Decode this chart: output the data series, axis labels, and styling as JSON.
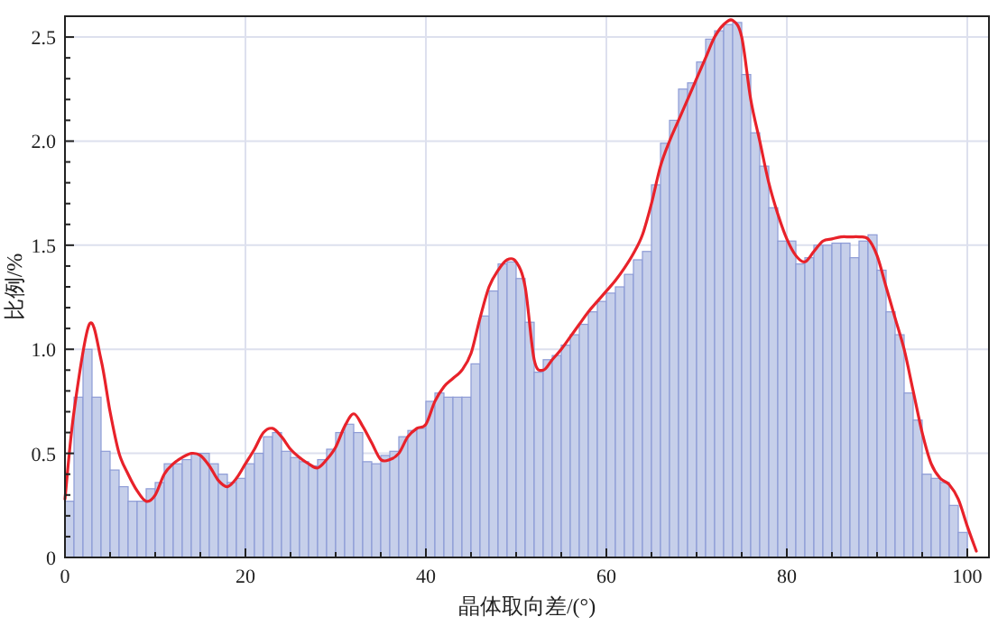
{
  "chart_data": {
    "type": "histogram",
    "xlabel": "晶体取向差/(°)",
    "ylabel": "比例/%",
    "bins": [
      0,
      1,
      2,
      3,
      4,
      5,
      6,
      7,
      8,
      9,
      10,
      11,
      12,
      13,
      14,
      15,
      16,
      17,
      18,
      19,
      20,
      21,
      22,
      23,
      24,
      25,
      26,
      27,
      28,
      29,
      30,
      31,
      32,
      33,
      34,
      35,
      36,
      37,
      38,
      39,
      40,
      41,
      42,
      43,
      44,
      45,
      46,
      47,
      48,
      49,
      50,
      51,
      52,
      53,
      54,
      55,
      56,
      57,
      58,
      59,
      60,
      61,
      62,
      63,
      64,
      65,
      66,
      67,
      68,
      69,
      70,
      71,
      72,
      73,
      74,
      75,
      76,
      77,
      78,
      79,
      80,
      81,
      82,
      83,
      84,
      85,
      86,
      87,
      88,
      89,
      90,
      91,
      92,
      93,
      94,
      95,
      96,
      97,
      98,
      99,
      100
    ],
    "values": [
      0.27,
      0.77,
      1.0,
      0.77,
      0.51,
      0.42,
      0.34,
      0.27,
      0.27,
      0.33,
      0.36,
      0.45,
      0.45,
      0.47,
      0.5,
      0.5,
      0.45,
      0.4,
      0.36,
      0.38,
      0.45,
      0.5,
      0.58,
      0.6,
      0.51,
      0.48,
      0.46,
      0.44,
      0.47,
      0.52,
      0.6,
      0.64,
      0.6,
      0.46,
      0.45,
      0.49,
      0.51,
      0.58,
      0.61,
      0.62,
      0.75,
      0.79,
      0.77,
      0.77,
      0.77,
      0.93,
      1.16,
      1.28,
      1.41,
      1.42,
      1.34,
      1.13,
      0.89,
      0.95,
      0.97,
      1.02,
      1.07,
      1.12,
      1.18,
      1.23,
      1.27,
      1.3,
      1.36,
      1.43,
      1.47,
      1.79,
      1.99,
      2.1,
      2.25,
      2.28,
      2.38,
      2.49,
      2.53,
      2.56,
      2.57,
      2.32,
      2.04,
      1.88,
      1.68,
      1.52,
      1.52,
      1.41,
      1.44,
      1.5,
      1.5,
      1.51,
      1.51,
      1.44,
      1.52,
      1.55,
      1.38,
      1.18,
      1.07,
      0.79,
      0.66,
      0.4,
      0.38,
      0.36,
      0.25,
      0.12
    ],
    "color": "#c6cfea",
    "series": [
      {
        "type": "line",
        "color": "#e8222a",
        "x": [
          0,
          1,
          2.7,
          4,
          5,
          6,
          7,
          8,
          9,
          10,
          11,
          12,
          13,
          14,
          15,
          16,
          17,
          18,
          19,
          20,
          21,
          22,
          23,
          24,
          25,
          26,
          27,
          28,
          29,
          30,
          31,
          32,
          33,
          34,
          35,
          36,
          37,
          38,
          39,
          40,
          41,
          42,
          43,
          44,
          45,
          46,
          47,
          48,
          49,
          50,
          51,
          52,
          53,
          54,
          55,
          56,
          57,
          58,
          59,
          60,
          61,
          62,
          63,
          64,
          65,
          66,
          67,
          68,
          69,
          70,
          71,
          72,
          73,
          74,
          75,
          76,
          77,
          78,
          79,
          80,
          81,
          82,
          83,
          84,
          85,
          86,
          87,
          88,
          89,
          90,
          91,
          92,
          93,
          94,
          95,
          96,
          97,
          98,
          99,
          100,
          101
        ],
        "values": [
          0.28,
          0.7,
          1.12,
          0.95,
          0.7,
          0.5,
          0.4,
          0.32,
          0.27,
          0.3,
          0.4,
          0.45,
          0.48,
          0.5,
          0.49,
          0.44,
          0.37,
          0.34,
          0.38,
          0.45,
          0.52,
          0.6,
          0.62,
          0.58,
          0.52,
          0.48,
          0.45,
          0.43,
          0.47,
          0.53,
          0.63,
          0.69,
          0.63,
          0.55,
          0.47,
          0.47,
          0.5,
          0.58,
          0.62,
          0.64,
          0.75,
          0.82,
          0.86,
          0.9,
          0.98,
          1.15,
          1.3,
          1.38,
          1.43,
          1.42,
          1.3,
          0.95,
          0.9,
          0.95,
          1.0,
          1.06,
          1.12,
          1.18,
          1.23,
          1.28,
          1.33,
          1.39,
          1.46,
          1.55,
          1.7,
          1.88,
          2.0,
          2.1,
          2.2,
          2.3,
          2.4,
          2.5,
          2.56,
          2.58,
          2.5,
          2.2,
          2.0,
          1.8,
          1.65,
          1.53,
          1.45,
          1.42,
          1.47,
          1.52,
          1.53,
          1.54,
          1.54,
          1.54,
          1.53,
          1.45,
          1.3,
          1.15,
          1.0,
          0.8,
          0.6,
          0.45,
          0.38,
          0.35,
          0.28,
          0.15,
          0.03
        ]
      }
    ],
    "xlim": [
      0,
      102.4
    ],
    "ylim": [
      0,
      2.6
    ],
    "xticks": [
      0,
      {
        "value": 5,
        "label": null
      },
      {
        "value": 10,
        "label": null
      },
      {
        "value": 15,
        "label": null
      },
      20,
      {
        "value": 25,
        "label": null
      },
      {
        "value": 30,
        "label": null
      },
      {
        "value": 35,
        "label": null
      },
      40,
      {
        "value": 45,
        "label": null
      },
      {
        "value": 50,
        "label": null
      },
      {
        "value": 55,
        "label": null
      },
      60,
      {
        "value": 65,
        "label": null
      },
      {
        "value": 70,
        "label": null
      },
      {
        "value": 75,
        "label": null
      },
      80,
      {
        "value": 85,
        "label": null
      },
      {
        "value": 90,
        "label": null
      },
      {
        "value": 95,
        "label": null
      },
      100
    ],
    "yticks": [
      0,
      {
        "value": 0.1,
        "label": null
      },
      {
        "value": 0.2,
        "label": null
      },
      {
        "value": 0.3,
        "label": null
      },
      {
        "value": 0.4,
        "label": null
      },
      0.5,
      {
        "value": 0.6,
        "label": null
      },
      {
        "value": 0.7,
        "label": null
      },
      {
        "value": 0.8,
        "label": null
      },
      {
        "value": 0.9,
        "label": null
      },
      {
        "value": 1,
        "label": "1.0"
      },
      {
        "value": 1.1,
        "label": null
      },
      {
        "value": 1.2,
        "label": null
      },
      {
        "value": 1.3,
        "label": null
      },
      {
        "value": 1.4,
        "label": null
      },
      1.5,
      {
        "value": 1.6,
        "label": null
      },
      {
        "value": 1.7,
        "label": null
      },
      {
        "value": 1.8,
        "label": null
      },
      {
        "value": 1.9,
        "label": null
      },
      {
        "value": 2,
        "label": "2.0"
      },
      {
        "value": 2.1,
        "label": null
      },
      {
        "value": 2.2,
        "label": null
      },
      {
        "value": 2.3,
        "label": null
      },
      {
        "value": 2.4,
        "label": null
      },
      2.5
    ],
    "grid": true
  }
}
